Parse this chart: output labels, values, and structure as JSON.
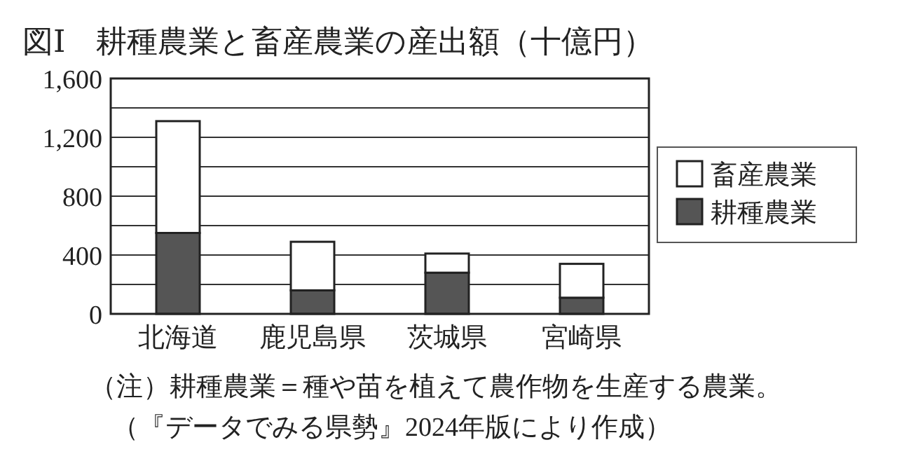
{
  "chart_data": {
    "type": "bar",
    "stacked": true,
    "title": "図Ⅰ　耕種農業と畜産農業の産出額（十億円）",
    "categories": [
      "北海道",
      "鹿児島県",
      "茨城県",
      "宮崎県"
    ],
    "series": [
      {
        "name": "耕種農業",
        "color": "#555555",
        "values": [
          550,
          160,
          280,
          110
        ]
      },
      {
        "name": "畜産農業",
        "color": "#ffffff",
        "values": [
          760,
          330,
          130,
          230
        ]
      }
    ],
    "ylim": [
      0,
      1600
    ],
    "yticks": [
      0,
      {
        "value": 200,
        "label": null
      },
      400,
      {
        "value": 600,
        "label": null
      },
      800,
      {
        "value": 1000,
        "label": null
      },
      {
        "value": 1200,
        "label": "1,200"
      },
      {
        "value": 1400,
        "label": null
      },
      {
        "value": 1600,
        "label": "1,600"
      }
    ],
    "grid": "y",
    "legend": "right",
    "annotations": [
      "（注）耕種農業＝種や苗を植えて農作物を生産する農業。",
      "（『データでみる県勢』2024年版により作成）"
    ]
  }
}
